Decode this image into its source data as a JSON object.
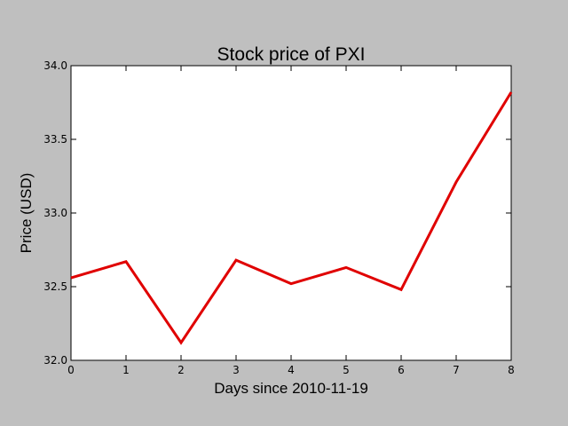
{
  "chart_data": {
    "type": "line",
    "title": "Stock price of PXI",
    "xlabel": "Days since 2010-11-19",
    "ylabel": "Price (USD)",
    "xlim": [
      0,
      8
    ],
    "ylim": [
      32.0,
      34.0
    ],
    "x_ticks": [
      0,
      1,
      2,
      3,
      4,
      5,
      6,
      7,
      8
    ],
    "x_tick_labels": [
      "0",
      "1",
      "2",
      "3",
      "4",
      "5",
      "6",
      "7",
      "8"
    ],
    "y_ticks": [
      32.0,
      32.5,
      33.0,
      33.5,
      34.0
    ],
    "y_tick_labels": [
      "32.0",
      "32.5",
      "33.0",
      "33.5",
      "34.0"
    ],
    "grid": false,
    "series": [
      {
        "color": "#e00000",
        "x": [
          0,
          1,
          2,
          3,
          4,
          5,
          6,
          7,
          8
        ],
        "values": [
          32.56,
          32.67,
          32.12,
          32.68,
          32.52,
          32.63,
          32.48,
          33.21,
          33.82
        ]
      }
    ]
  },
  "colors": {
    "figure_background": "#bfbfbf",
    "plot_background": "#ffffff",
    "line": "#e00000"
  }
}
